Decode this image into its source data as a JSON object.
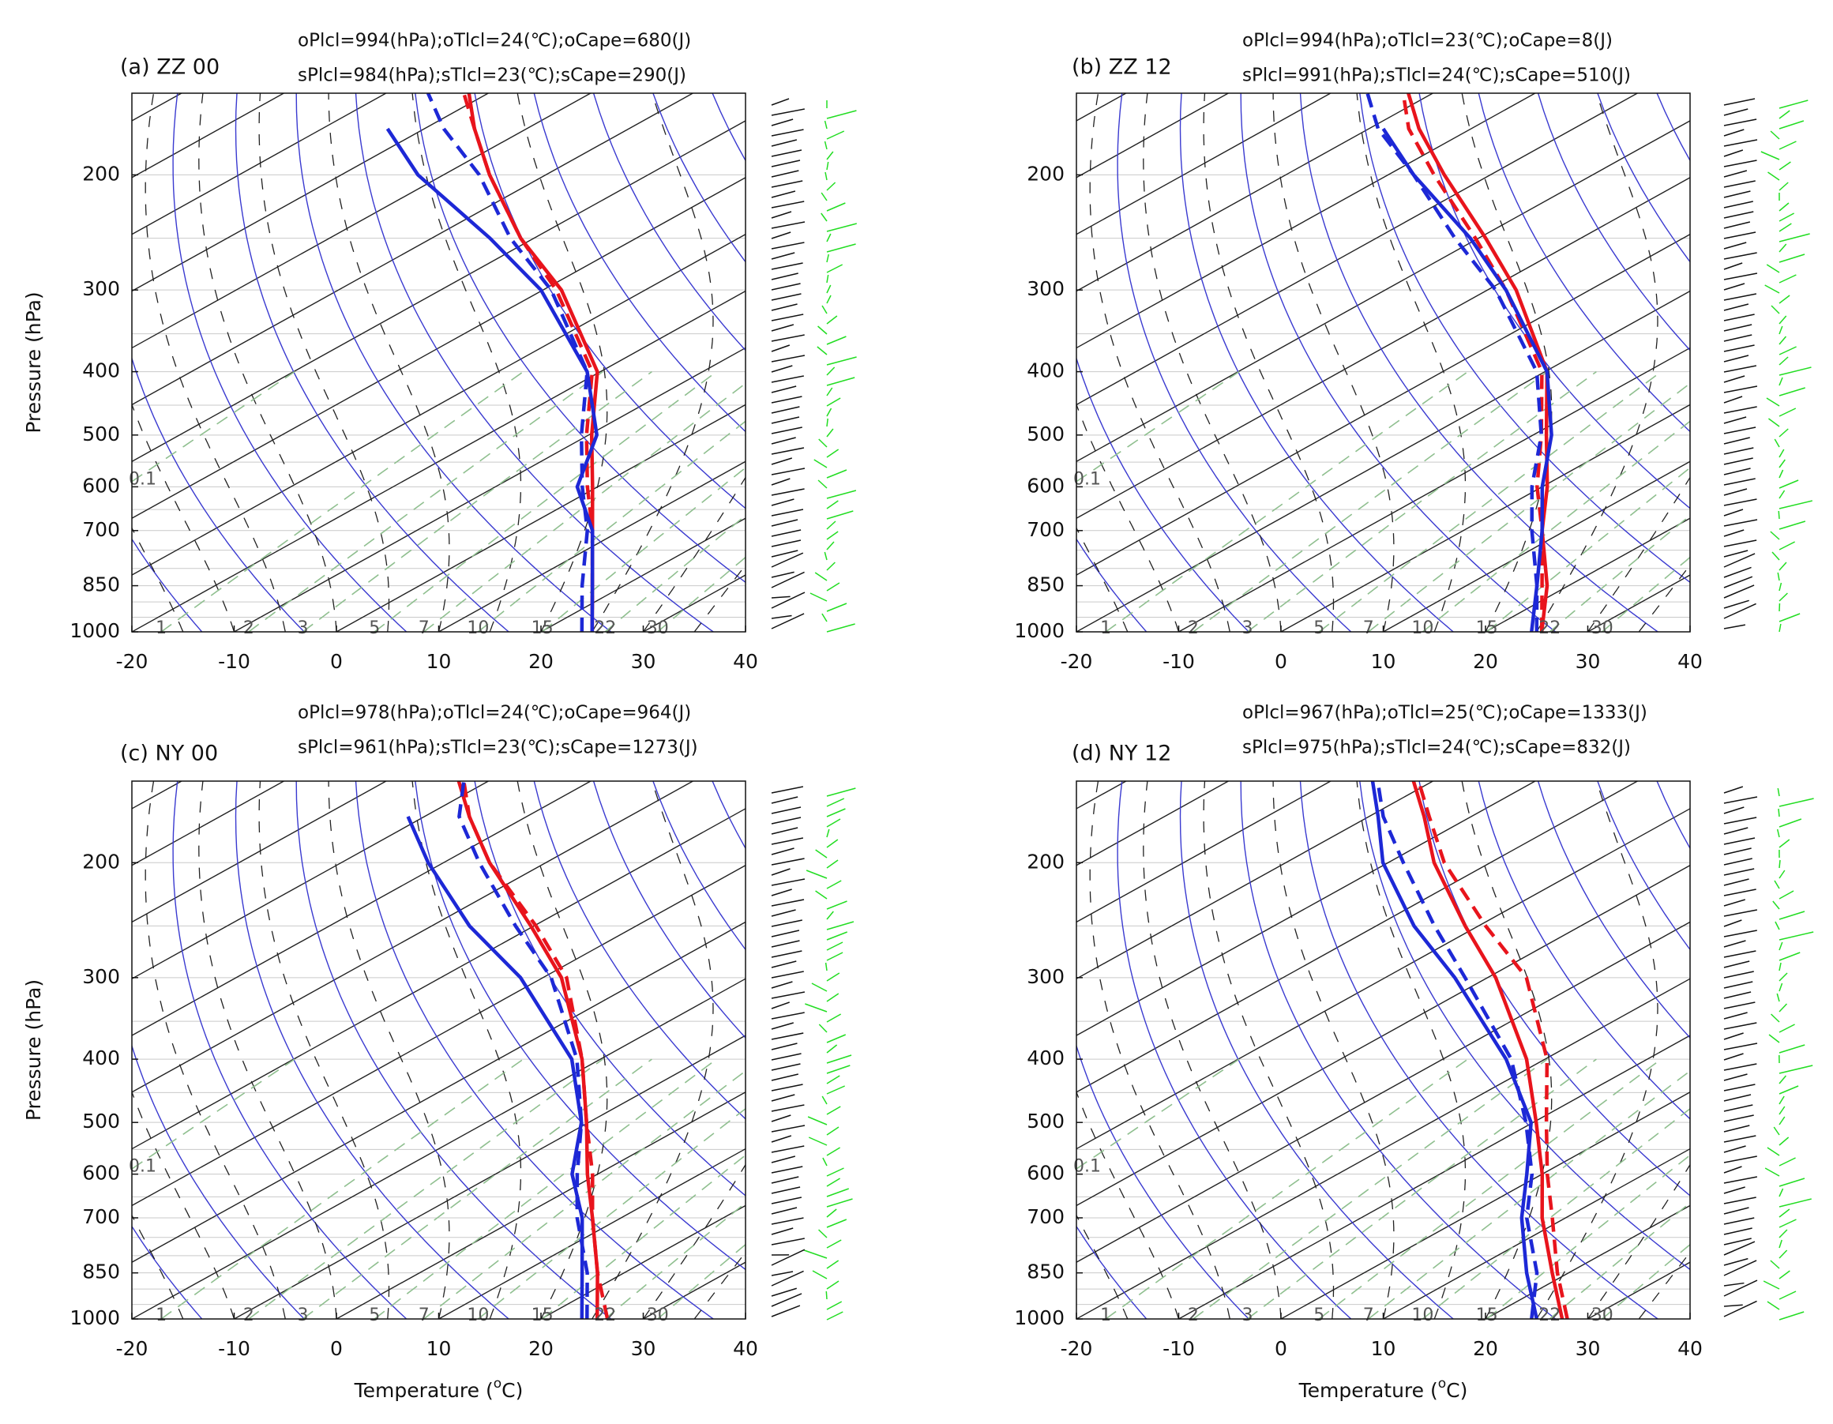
{
  "chart_data": [
    {
      "type": "skewt",
      "title": "(a) ZZ 00",
      "annotations": [
        "oPlcl=994(hPa);oTlcl=24(℃);oCape=680(J)",
        "sPlcl=984(hPa);sTlcl=23(℃);sCape=290(J)"
      ],
      "ylabel": "Pressure (hPa)",
      "xlim": [
        -20,
        40
      ],
      "xticks": [
        -20,
        -10,
        0,
        10,
        20,
        30,
        40
      ],
      "ylim": [
        1000,
        150
      ],
      "yticks": [
        200,
        300,
        400,
        500,
        600,
        700,
        850,
        1000
      ],
      "log_y": true,
      "mixing_ratios": [
        0.1,
        1,
        2,
        3,
        5,
        7,
        10,
        15,
        22,
        30
      ],
      "pressure": [
        1000,
        850,
        700,
        600,
        500,
        400,
        300,
        250,
        200,
        170,
        150
      ],
      "series": [
        {
          "color": "#e8141c",
          "style": "solid",
          "values": [
            25,
            16.9,
            7.2,
            -0.5,
            -9.7,
            -20.3,
            -38.2,
            -51.3,
            -65.5,
            -75.1,
            -81.9
          ]
        },
        {
          "color": "#e8141c",
          "style": "dashed",
          "values": [
            25,
            16.9,
            7.2,
            -1,
            -10.2,
            -20.8,
            -38.7,
            -51.3,
            -65.5,
            -75.1,
            -82.4
          ]
        },
        {
          "color": "#1d28d6",
          "style": "solid",
          "values": [
            25,
            16.9,
            7.2,
            -2,
            -9.2,
            -21.3,
            -40.2,
            -54.3,
            -72.5,
            -83.6,
            null
          ]
        },
        {
          "color": "#1d28d6",
          "style": "dashed",
          "values": [
            24,
            15.9,
            6.7,
            -1.5,
            -10.7,
            -21.3,
            -39.2,
            -52.3,
            -66.5,
            -78.1,
            -85.9
          ]
        }
      ]
    },
    {
      "type": "skewt",
      "title": "(b) ZZ 12",
      "annotations": [
        "oPlcl=994(hPa);oTlcl=23(℃);oCape=8(J)",
        "sPlcl=991(hPa);sTlcl=24(℃);sCape=510(J)"
      ],
      "xlim": [
        -20,
        40
      ],
      "xticks": [
        -20,
        -10,
        0,
        10,
        20,
        30,
        40
      ],
      "ylim": [
        1000,
        150
      ],
      "yticks": [
        200,
        300,
        400,
        500,
        600,
        700,
        850,
        1000
      ],
      "log_y": true,
      "mixing_ratios": [
        0.1,
        1,
        2,
        3,
        5,
        7,
        10,
        15,
        22,
        30
      ],
      "pressure": [
        1000,
        850,
        700,
        600,
        500,
        400,
        300,
        250,
        200,
        170,
        150
      ],
      "series": [
        {
          "color": "#e8141c",
          "style": "solid",
          "values": [
            25.5,
            17.9,
            7.7,
            0.5,
            -8.7,
            -19.8,
            -37.2,
            -49.3,
            -64.5,
            -75.1,
            -82.4
          ]
        },
        {
          "color": "#e8141c",
          "style": "dashed",
          "values": [
            25.5,
            17.4,
            7.7,
            -0.5,
            -9.2,
            -20.3,
            -38.2,
            -50.3,
            -65.5,
            -76.1,
            -82.9
          ]
        },
        {
          "color": "#1d28d6",
          "style": "solid",
          "values": [
            24.5,
            16.9,
            7.7,
            0,
            -8.2,
            -19.8,
            -38.2,
            -50.8,
            -67.5,
            -78.6,
            null
          ]
        },
        {
          "color": "#1d28d6",
          "style": "dashed",
          "values": [
            25,
            16.9,
            6.7,
            -1,
            -9.2,
            -20.8,
            -39.2,
            -52.3,
            -67.5,
            -79.1,
            -86.4
          ]
        }
      ]
    },
    {
      "type": "skewt",
      "title": "(c) NY 00",
      "annotations": [
        "oPlcl=978(hPa);oTlcl=24(℃);oCape=964(J)",
        "sPlcl=961(hPa);sTlcl=23(℃);sCape=1273(J)"
      ],
      "ylabel": "Pressure (hPa)",
      "xlabel": [
        "Temperature (",
        "o",
        "C)"
      ],
      "xlim": [
        -20,
        40
      ],
      "xticks": [
        -20,
        -10,
        0,
        10,
        20,
        30,
        40
      ],
      "ylim": [
        1000,
        150
      ],
      "yticks": [
        200,
        300,
        400,
        500,
        600,
        700,
        850,
        1000
      ],
      "log_y": true,
      "mixing_ratios": [
        0.1,
        1,
        2,
        3,
        5,
        7,
        10,
        15,
        22,
        30
      ],
      "pressure": [
        1000,
        850,
        700,
        600,
        500,
        400,
        300,
        250,
        200,
        170,
        150
      ],
      "series": [
        {
          "color": "#e8141c",
          "style": "solid",
          "values": [
            25.5,
            17.4,
            7.2,
            -1,
            -10.2,
            -21.8,
            -38.2,
            -50.3,
            -65.5,
            -75.6,
            -82.9
          ]
        },
        {
          "color": "#e8141c",
          "style": "dashed",
          "values": [
            26.5,
            17.4,
            7.2,
            -0.5,
            -10.2,
            -21.8,
            -37.7,
            -49.8,
            -65.5,
            -75.6,
            -82.4
          ]
        },
        {
          "color": "#1d28d6",
          "style": "solid",
          "values": [
            24,
            15.9,
            6.2,
            -2.5,
            -10.7,
            -22.8,
            -42.2,
            -56.3,
            -71.5,
            -81.6,
            null
          ]
        },
        {
          "color": "#1d28d6",
          "style": "dashed",
          "values": [
            24.5,
            16.4,
            5.7,
            -2,
            -10.7,
            -22.3,
            -39.2,
            -51.8,
            -66.5,
            -76.6,
            -82.4
          ]
        }
      ]
    },
    {
      "type": "skewt",
      "title": "(d) NY 12",
      "annotations": [
        "oPlcl=967(hPa);oTlcl=25(℃);oCape=1333(J)",
        "sPlcl=975(hPa);sTlcl=24(℃);sCape=832(J)"
      ],
      "xlabel": [
        "Temperature (",
        "o",
        "C)"
      ],
      "xlim": [
        -20,
        40
      ],
      "xticks": [
        -20,
        -10,
        0,
        10,
        20,
        30,
        40
      ],
      "ylim": [
        1000,
        150
      ],
      "yticks": [
        200,
        300,
        400,
        500,
        600,
        700,
        850,
        1000
      ],
      "log_y": true,
      "mixing_ratios": [
        0.1,
        1,
        2,
        3,
        5,
        7,
        10,
        15,
        22,
        30
      ],
      "pressure": [
        1000,
        850,
        700,
        600,
        500,
        400,
        300,
        250,
        200,
        170,
        150
      ],
      "series": [
        {
          "color": "#e8141c",
          "style": "solid",
          "values": [
            27.5,
            18.4,
            7.7,
            0,
            -9.7,
            -21.8,
            -39.2,
            -51.3,
            -65.5,
            -74.6,
            -81.9
          ]
        },
        {
          "color": "#e8141c",
          "style": "dashed",
          "values": [
            28,
            18.9,
            8.7,
            0.5,
            -8.7,
            -19.8,
            -36.2,
            -49.3,
            -64.5,
            -74.1,
            -81.4
          ]
        },
        {
          "color": "#1d28d6",
          "style": "solid",
          "values": [
            25,
            15.9,
            5.7,
            -1.5,
            -10.2,
            -23.8,
            -43.2,
            -56.3,
            -70.5,
            -79.1,
            -85.9
          ]
        },
        {
          "color": "#1d28d6",
          "style": "dashed",
          "values": [
            24.5,
            16.9,
            6.2,
            -1,
            -10.7,
            -23.3,
            -42.2,
            -54.3,
            -68.5,
            -78.6,
            -85.4
          ]
        }
      ]
    }
  ]
}
